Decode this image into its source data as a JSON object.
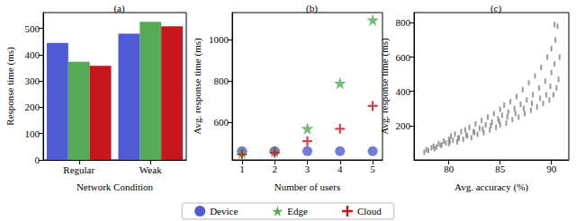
{
  "chart_data": [
    {
      "type": "bar",
      "title": "(a)",
      "x_label": "Network Condition",
      "y_label": "Response time (ms)",
      "categories": [
        "Regular",
        "Weak"
      ],
      "series": [
        {
          "name": "Device",
          "color": "#4f5bd5",
          "values": [
            445,
            480
          ]
        },
        {
          "name": "Edge",
          "color": "#55aa55",
          "values": [
            373,
            525
          ]
        },
        {
          "name": "Cloud",
          "color": "#c8161e",
          "values": [
            358,
            508
          ]
        }
      ],
      "ylim": [
        0,
        560
      ],
      "yticks": [
        0,
        100,
        200,
        300,
        400,
        500
      ],
      "grid": false
    },
    {
      "type": "scatter",
      "title": "(b)",
      "x_label": "Number of users",
      "y_label": "Avg. response time (ms)",
      "x": [
        1,
        2,
        3,
        4,
        5
      ],
      "series": [
        {
          "name": "Device",
          "color": "#4f5bd5",
          "marker": "circle",
          "values": [
            462,
            462,
            462,
            462,
            462
          ]
        },
        {
          "name": "Edge",
          "color": "#55aa55",
          "marker": "star",
          "values": [
            455,
            462,
            572,
            790,
            1095
          ]
        },
        {
          "name": "Cloud",
          "color": "#c8161e",
          "marker": "plus",
          "values": [
            446,
            455,
            510,
            570,
            680
          ]
        }
      ],
      "xlim": [
        0.7,
        5.3
      ],
      "xticks": [
        1,
        2,
        3,
        4,
        5
      ],
      "ylim": [
        420,
        1130
      ],
      "yticks": [
        600,
        800,
        1000
      ],
      "grid": false,
      "legend": "bottom"
    },
    {
      "type": "scatter",
      "title": "(c)",
      "x_label": "Avg. accuracy (%)",
      "y_label": "Avg. response time (ms)",
      "color": "#808080",
      "marker": "vline",
      "x": [
        77.6,
        77.8,
        78.0,
        78.3,
        78.5,
        78.8,
        79.0,
        79.2,
        79.5,
        79.7,
        80.0,
        80.0,
        80.2,
        80.4,
        80.6,
        80.8,
        81.0,
        81.2,
        81.4,
        81.6,
        81.8,
        82.0,
        82.2,
        82.4,
        82.6,
        82.8,
        83.0,
        83.2,
        83.4,
        83.6,
        83.8,
        84.0,
        84.2,
        84.4,
        84.6,
        84.8,
        85.0,
        85.0,
        85.2,
        85.4,
        85.6,
        85.8,
        86.0,
        86.2,
        86.4,
        86.6,
        86.8,
        87.0,
        87.2,
        87.4,
        87.6,
        87.8,
        88.0,
        88.2,
        88.4,
        88.6,
        88.8,
        89.0,
        89.2,
        89.4,
        89.6,
        89.8,
        90.0,
        90.0,
        90.2,
        90.3,
        90.4,
        90.5,
        90.6,
        90.3,
        89.9,
        89.5,
        88.9,
        88.1,
        87.3,
        86.5,
        85.7,
        84.9,
        84.1,
        83.3,
        82.5,
        81.7,
        80.9,
        80.1,
        79.3,
        78.6,
        90.7,
        90.8
      ],
      "values": [
        45,
        60,
        55,
        70,
        80,
        75,
        95,
        85,
        110,
        100,
        120,
        95,
        140,
        115,
        150,
        105,
        130,
        165,
        120,
        175,
        140,
        190,
        130,
        165,
        210,
        150,
        185,
        230,
        160,
        205,
        250,
        175,
        220,
        270,
        190,
        240,
        295,
        205,
        260,
        320,
        215,
        280,
        340,
        235,
        300,
        370,
        250,
        325,
        410,
        270,
        350,
        450,
        290,
        380,
        490,
        310,
        420,
        540,
        330,
        460,
        600,
        350,
        510,
        650,
        380,
        560,
        700,
        420,
        780,
        790,
        430,
        380,
        360,
        330,
        300,
        270,
        250,
        225,
        200,
        180,
        160,
        145,
        125,
        108,
        88,
        65,
        470,
        600
      ],
      "xlim": [
        76.6,
        91.7
      ],
      "xticks": [
        80,
        85,
        90
      ],
      "ylim": [
        0,
        860
      ],
      "yticks": [
        200,
        400,
        600,
        800
      ],
      "grid": false
    }
  ]
}
